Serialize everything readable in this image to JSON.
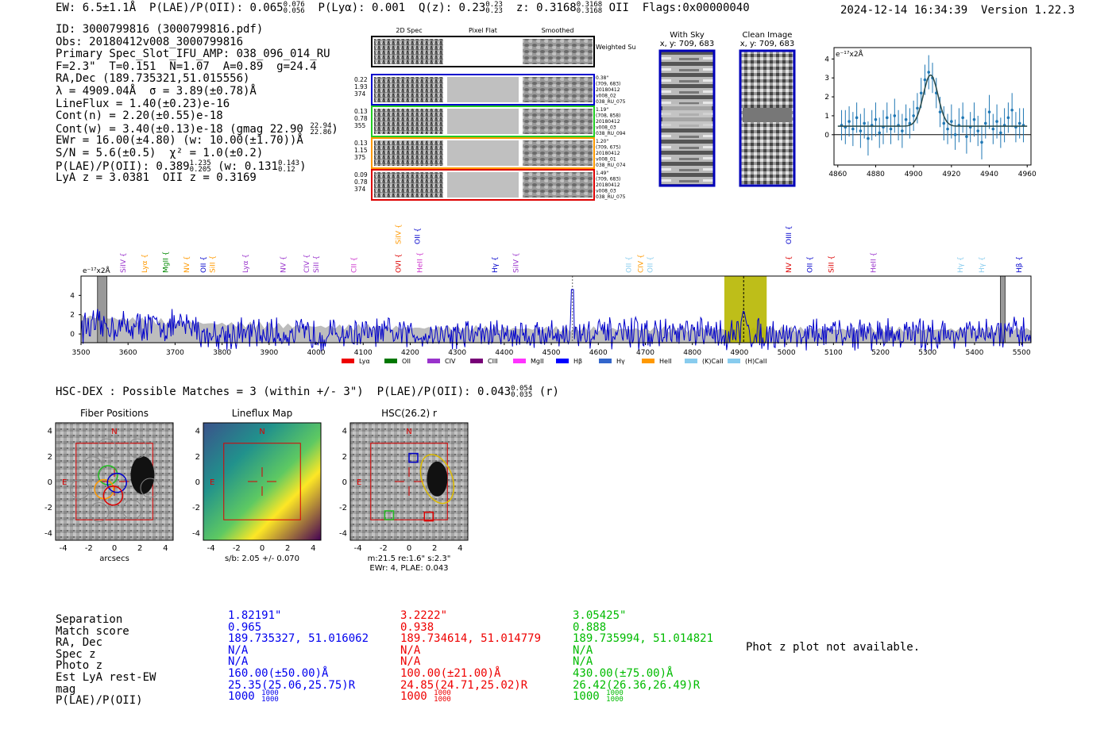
{
  "header": {
    "ew": "EW: 6.5±1.1Å",
    "plae_label": "P(LAE)/P(OII): 0.065",
    "plae_hi": "0.076",
    "plae_lo": "0.056",
    "plya": "P(Lyα): 0.001",
    "qz_label": "Q(z): 0.23",
    "qz_hi": "0.23",
    "qz_lo": "0.23",
    "z_label": "z: 0.3168",
    "z_hi": "0.3168",
    "z_lo": "0.3168",
    "z_line": "OII",
    "flags": "Flags:0x00000040",
    "timestamp": "2024-12-14 16:34:39",
    "version": "Version 1.22.3"
  },
  "info": {
    "id": "ID: 3000799816 (3000799816.pdf)",
    "obs": "Obs: 20180412v008_3000799816",
    "slot": "Primary Spec_Slot_IFU_AMP: 038_096_014_RU",
    "fparams": "F=2.3\"  T=0.151  N=1.07  A=0.89  g=24.4",
    "radec": "RA,Dec (189.735321,51.015556)",
    "lambda": "λ = 4909.04Å  σ = 3.89(±0.78)Å",
    "lineflux": "LineFlux = 1.40(±0.23)e-16",
    "contn": "Cont(n) = 2.20(±0.55)e-18",
    "contw": "Cont(w) = 3.40(±0.13)e-18 (gmag 22.90",
    "contw_hi": "22.94",
    "contw_lo": "22.86",
    "ewr": "EWr = 16.00(±4.80) (w: 10.00(±1.70))Å",
    "sn": "S/N = 5.6(±0.5)  χ² = 1.0(±0.2)",
    "plae": "P(LAE)/P(OII): 0.389",
    "plae_hi": "1.235",
    "plae_lo": "0.205",
    "plae_w": "(w: 0.131",
    "plae_w_hi": "0.143",
    "plae_w_lo": "0.12",
    "lya_z": "LyA z = 3.0381  OII z = 0.3169"
  },
  "cutouts": {
    "col_headers": [
      "2D Spec",
      "Pixel Flat",
      "Smoothed"
    ],
    "weighted_sum": "Weighted Sum",
    "rows": [
      {
        "left": [
          "0.22",
          "1.93",
          "374"
        ],
        "right": [
          "0.38\"",
          "(709, 683)",
          "20180412",
          "v008_02",
          "038_RU_075"
        ],
        "color": "#0000cc"
      },
      {
        "left": [
          "0.13",
          "0.78",
          "355"
        ],
        "right": [
          "1.19\"",
          "(708, 858)",
          "20180412",
          "v008_03",
          "038_RU_094"
        ],
        "color": "#22cc22"
      },
      {
        "left": [
          "0.13",
          "1.15",
          "375"
        ],
        "right": [
          "1.20\"",
          "(709, 675)",
          "20180412",
          "v008_01",
          "038_RU_074"
        ],
        "color": "#ff9900"
      },
      {
        "left": [
          "0.09",
          "0.78",
          "374"
        ],
        "right": [
          "1.49\"",
          "(709, 683)",
          "20180412",
          "v008_03",
          "038_RU_075"
        ],
        "color": "#dd0000"
      }
    ],
    "with_sky_title": "With Sky",
    "with_sky_xy": "x, y: 709, 683",
    "clean_title": "Clean Image",
    "clean_xy": "x, y: 709, 683"
  },
  "chart_data": [
    {
      "type": "line",
      "title": "",
      "unit_label": "e⁻¹⁷x2Å",
      "x_ticks": [
        4860,
        4880,
        4900,
        4920,
        4940,
        4960
      ],
      "y_ticks": [
        0,
        1,
        2,
        3,
        4
      ],
      "xlim": [
        4858,
        4962
      ],
      "ylim": [
        -1.6,
        4.6
      ],
      "points": [
        [
          4862,
          0.5,
          0.8
        ],
        [
          4864,
          0.4,
          0.9
        ],
        [
          4866,
          0.7,
          0.8
        ],
        [
          4868,
          0.3,
          0.9
        ],
        [
          4870,
          0.9,
          0.8
        ],
        [
          4872,
          0.2,
          0.9
        ],
        [
          4874,
          0.6,
          0.8
        ],
        [
          4876,
          -0.2,
          0.9
        ],
        [
          4878,
          0.5,
          0.8
        ],
        [
          4880,
          0.8,
          0.9
        ],
        [
          4882,
          0.1,
          0.8
        ],
        [
          4884,
          0.4,
          0.9
        ],
        [
          4886,
          0.9,
          0.8
        ],
        [
          4888,
          0.3,
          0.8
        ],
        [
          4890,
          1.0,
          0.9
        ],
        [
          4892,
          0.5,
          0.8
        ],
        [
          4894,
          0.2,
          0.9
        ],
        [
          4896,
          0.8,
          0.8
        ],
        [
          4898,
          0.6,
          0.8
        ],
        [
          4900,
          1.0,
          0.8
        ],
        [
          4902,
          1.4,
          0.8
        ],
        [
          4904,
          2.2,
          0.8
        ],
        [
          4906,
          2.9,
          0.8
        ],
        [
          4908,
          3.3,
          0.9
        ],
        [
          4910,
          3.0,
          0.8
        ],
        [
          4912,
          2.2,
          0.8
        ],
        [
          4914,
          1.2,
          0.8
        ],
        [
          4916,
          0.6,
          0.9
        ],
        [
          4918,
          0.3,
          0.8
        ],
        [
          4920,
          0.7,
          0.9
        ],
        [
          4922,
          0.0,
          0.8
        ],
        [
          4924,
          0.5,
          0.9
        ],
        [
          4926,
          0.9,
          0.8
        ],
        [
          4928,
          -0.1,
          0.9
        ],
        [
          4930,
          0.4,
          0.8
        ],
        [
          4932,
          0.8,
          0.9
        ],
        [
          4934,
          0.2,
          0.8
        ],
        [
          4936,
          -0.4,
          0.9
        ],
        [
          4938,
          0.6,
          0.8
        ],
        [
          4940,
          1.2,
          0.9
        ],
        [
          4942,
          0.3,
          0.8
        ],
        [
          4944,
          0.7,
          0.9
        ],
        [
          4946,
          0.1,
          0.8
        ],
        [
          4948,
          0.5,
          0.9
        ],
        [
          4950,
          0.9,
          0.8
        ],
        [
          4952,
          1.3,
          0.9
        ],
        [
          4954,
          0.4,
          0.8
        ],
        [
          4956,
          0.6,
          0.8
        ],
        [
          4958,
          0.5,
          0.9
        ]
      ],
      "fit": {
        "amplitude": 2.7,
        "center": 4909.0,
        "sigma": 3.9,
        "baseline": 0.45
      },
      "marker_color": "#1f77b4"
    },
    {
      "type": "line",
      "title": "",
      "unit_label": "e⁻¹⁷x2Å",
      "x_ticks": [
        3500,
        3600,
        3700,
        3800,
        3900,
        4000,
        4100,
        4200,
        4300,
        4400,
        4500,
        4600,
        4700,
        4800,
        4900,
        5000,
        5100,
        5200,
        5300,
        5400,
        5500
      ],
      "y_ticks": [
        0,
        2,
        4
      ],
      "xlim": [
        3500,
        5520
      ],
      "ylim": [
        -0.9,
        6.0
      ],
      "series": [
        {
          "name": "",
          "color": "#0000cc"
        }
      ],
      "highlight_band": [
        4868,
        4958
      ],
      "highlight_center": 4909,
      "dashed_lines": [
        4545
      ],
      "masked_regions": [
        [
          3535,
          3555
        ],
        [
          5455,
          5465
        ]
      ],
      "line_labels": [
        {
          "label": "SiIV",
          "x": 3595,
          "color": "#9933cc",
          "row": 1
        },
        {
          "label": "Lyα",
          "x": 3640,
          "color": "#ff9900",
          "row": 1
        },
        {
          "label": "MgII",
          "x": 3685,
          "color": "#008800",
          "row": 1
        },
        {
          "label": "NV",
          "x": 3730,
          "color": "#ff9900",
          "row": 1
        },
        {
          "label": "OII",
          "x": 3765,
          "color": "#0000cc",
          "row": 1
        },
        {
          "label": "SiII",
          "x": 3785,
          "color": "#ff9900",
          "row": 1
        },
        {
          "label": "Lyα",
          "x": 3855,
          "color": "#9933cc",
          "row": 1
        },
        {
          "label": "NV",
          "x": 3935,
          "color": "#9933cc",
          "row": 1
        },
        {
          "label": "CIV",
          "x": 3985,
          "color": "#9933cc",
          "row": 1
        },
        {
          "label": "SiII",
          "x": 4005,
          "color": "#9933cc",
          "row": 1
        },
        {
          "label": "CII",
          "x": 4085,
          "color": "#cc33cc",
          "row": 1
        },
        {
          "label": "OVI",
          "x": 4180,
          "color": "#dd0000",
          "row": 1
        },
        {
          "label": "HeII",
          "x": 4225,
          "color": "#cc33cc",
          "row": 1
        },
        {
          "label": "SiIV",
          "x": 4180,
          "color": "#ff9900",
          "row": 0
        },
        {
          "label": "OII",
          "x": 4220,
          "color": "#0000cc",
          "row": 0
        },
        {
          "label": "Hγ",
          "x": 4385,
          "color": "#0000cc",
          "row": 1
        },
        {
          "label": "SiIV",
          "x": 4430,
          "color": "#9933cc",
          "row": 1
        },
        {
          "label": "OII",
          "x": 4670,
          "color": "#88ccee",
          "row": 1
        },
        {
          "label": "CIV",
          "x": 4695,
          "color": "#ff9900",
          "row": 1
        },
        {
          "label": "OII",
          "x": 4715,
          "color": "#88ccee",
          "row": 1
        },
        {
          "label": "OIII",
          "x": 5010,
          "color": "#0000cc",
          "row": 0
        },
        {
          "label": "NV",
          "x": 5010,
          "color": "#dd0000",
          "row": 1
        },
        {
          "label": "OII",
          "x": 5055,
          "color": "#0000cc",
          "row": 1
        },
        {
          "label": "SiII",
          "x": 5100,
          "color": "#dd0000",
          "row": 1
        },
        {
          "label": "HeII",
          "x": 5190,
          "color": "#9933cc",
          "row": 1
        },
        {
          "label": "Hγ",
          "x": 5375,
          "color": "#88ccee",
          "row": 1
        },
        {
          "label": "Hγ",
          "x": 5420,
          "color": "#88ccee",
          "row": 1
        },
        {
          "label": "Hβ",
          "x": 5500,
          "color": "#0000cc",
          "row": 1
        }
      ],
      "legend": [
        {
          "label": "Lyα",
          "color": "#ee0000"
        },
        {
          "label": "OII",
          "color": "#007700"
        },
        {
          "label": "CIV",
          "color": "#9933cc"
        },
        {
          "label": "CIII",
          "color": "#770077"
        },
        {
          "label": "MgII",
          "color": "#ff33ff"
        },
        {
          "label": "Hβ",
          "color": "#0000ff"
        },
        {
          "label": "Hγ",
          "color": "#3366cc"
        },
        {
          "label": "HeII",
          "color": "#ff9900"
        },
        {
          "label": "(K)CaII",
          "color": "#88ccee"
        },
        {
          "label": "(H)CaII",
          "color": "#88ccee"
        }
      ]
    }
  ],
  "hsc": {
    "line_prefix": "HSC-DEX : Possible Matches = 3 (within +/- 3\")  P(LAE)/P(OII): 0.043",
    "hi": "0.054",
    "lo": "0.035",
    "band": "(r)",
    "panels": [
      {
        "title": "Fiber Positions",
        "xlabel": "arcsecs",
        "caption": []
      },
      {
        "title": "Lineflux Map",
        "xlabel": "s/b: 2.05 +/- 0.070",
        "caption": []
      },
      {
        "title": "HSC(26.2) r",
        "xlabel": "m:21.5  re:1.6\"  s:2.3\"",
        "caption": [
          "EWr: 4, PLAE: 0.043"
        ]
      }
    ],
    "axis_ticks": [
      -4,
      -2,
      0,
      2,
      4
    ],
    "compass_n": "N",
    "compass_e": "E"
  },
  "candidates": {
    "labels": [
      "Separation",
      "Match score",
      "RA, Dec",
      "Spec z",
      "Photo z",
      "Est LyA rest-EW",
      "mag",
      "P(LAE)/P(OII)"
    ],
    "columns": [
      {
        "color": "#0000ee",
        "values": [
          "1.82191\"",
          "0.965",
          "189.735327, 51.016062",
          "N/A",
          "N/A",
          "160.00(±50.00)Å",
          "25.35(25.06,25.75)R",
          "1000"
        ],
        "plae_hi": "1000",
        "plae_lo": "1000"
      },
      {
        "color": "#ee0000",
        "values": [
          "3.2222\"",
          "0.938",
          "189.734614, 51.014779",
          "N/A",
          "N/A",
          "100.00(±21.00)Å",
          "24.85(24.71,25.02)R",
          "1000"
        ],
        "plae_hi": "1000",
        "plae_lo": "1000"
      },
      {
        "color": "#00bb00",
        "values": [
          "3.05425\"",
          "0.888",
          "189.735994, 51.014821",
          "N/A",
          "N/A",
          "430.00(±75.00)Å",
          "26.42(26.36,26.49)R",
          "1000"
        ],
        "plae_hi": "1000",
        "plae_lo": "1000"
      }
    ],
    "phot_z_note": "Phot z plot not available."
  }
}
